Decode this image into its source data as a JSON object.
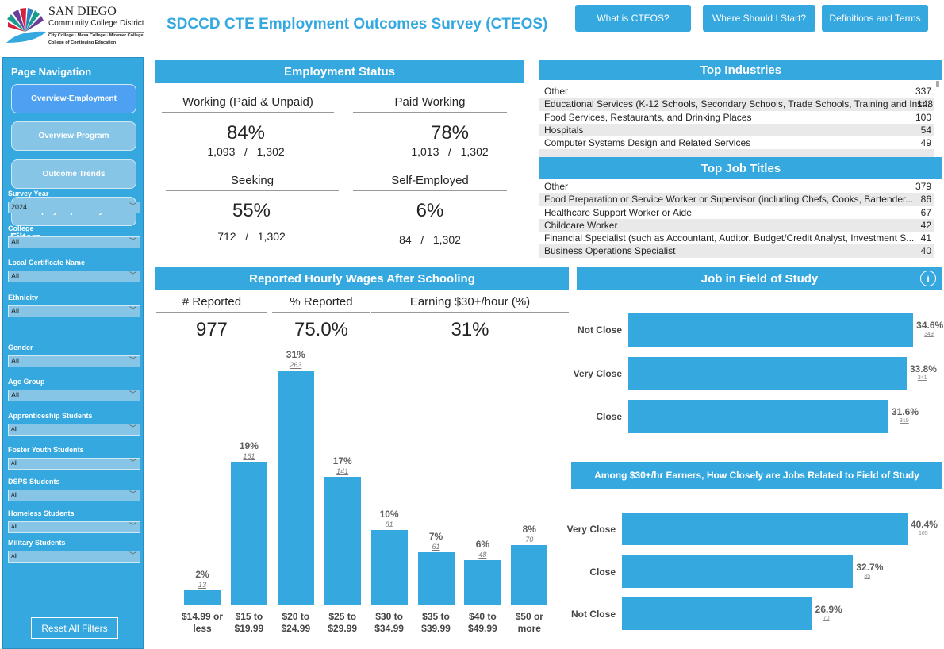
{
  "logo": {
    "line1": "SAN DIEGO",
    "line2": "Community College District",
    "line3": "City College · Mesa College · Miramar College",
    "line4": "College of Continuing Education"
  },
  "title": "SDCCD CTE Employment Outcomes Survey (CTEOS)",
  "top_buttons": [
    "What is CTEOS?",
    "Where Should I Start?",
    "Definitions and Terms"
  ],
  "sidebar": {
    "nav_title": "Page Navigation",
    "nav": [
      {
        "label": "Overview-Employment",
        "active": true
      },
      {
        "label": "Overview-Program"
      },
      {
        "label": "Outcome Trends"
      },
      {
        "label": "Equity Gaps Analysis"
      }
    ],
    "filters_title": "Filters",
    "filters": [
      {
        "label": "Survey Year",
        "value": "2024"
      },
      {
        "label": "College",
        "value": "All"
      },
      {
        "label": "Local Certificate Name",
        "value": "All"
      },
      {
        "label": "Ethnicity",
        "value": "All"
      },
      {
        "label": "Gender",
        "value": "All"
      },
      {
        "label": "Age Group",
        "value": "All"
      },
      {
        "label": "Apprenticeship Students",
        "value": "All"
      },
      {
        "label": "Foster Youth Students",
        "value": "All"
      },
      {
        "label": "DSPS Students",
        "value": "All"
      },
      {
        "label": "Homeless Students",
        "value": "All"
      },
      {
        "label": "Military Students",
        "value": "All"
      }
    ],
    "reset": "Reset All Filters"
  },
  "employment": {
    "title": "Employment Status",
    "kpis": [
      {
        "label": "Working (Paid & Unpaid)",
        "pct": "84%",
        "num": "1,093",
        "den": "1,302"
      },
      {
        "label": "Paid Working",
        "pct": "78%",
        "num": "1,013",
        "den": "1,302"
      },
      {
        "label": "Seeking",
        "pct": "55%",
        "num": "712",
        "den": "1,302"
      },
      {
        "label": "Self-Employed",
        "pct": "6%",
        "num": "84",
        "den": "1,302"
      }
    ]
  },
  "industries": {
    "title": "Top Industries",
    "rows": [
      [
        "Other",
        "337"
      ],
      [
        "Educational Services (K-12 Schools, Secondary Schools, Trade Schools, Training and Inst...",
        "148"
      ],
      [
        "Food Services, Restaurants, and Drinking Places",
        "100"
      ],
      [
        "Hospitals",
        "54"
      ],
      [
        "Computer Systems Design and Related Services",
        "49"
      ]
    ]
  },
  "jobs": {
    "title": "Top Job Titles",
    "rows": [
      [
        "Other",
        "379"
      ],
      [
        "Food Preparation or Service Worker or Supervisor (including Chefs, Cooks, Bartender...",
        "86"
      ],
      [
        "Healthcare Support Worker or Aide",
        "67"
      ],
      [
        "Childcare Worker",
        "42"
      ],
      [
        "Financial Specialist (such as Accountant, Auditor, Budget/Credit Analyst, Investment S...",
        "41"
      ],
      [
        "Business Operations Specialist",
        "40"
      ]
    ]
  },
  "wages": {
    "title": "Reported Hourly Wages After Schooling",
    "kpis": [
      {
        "label": "# Reported",
        "value": "977"
      },
      {
        "label": "% Reported",
        "value": "75.0%"
      },
      {
        "label": "Earning $30+/hour (%)",
        "value": "31%"
      }
    ]
  },
  "field": {
    "title": "Job in Field of Study",
    "info_icon": "info-icon"
  },
  "field30": {
    "title": "Among $30+/hr Earners, How Closely are Jobs Related to Field of Study"
  },
  "colors": {
    "accent": "#35a8df",
    "nav_active": "#4da0f2"
  },
  "chart_data": [
    {
      "type": "bar",
      "categories": [
        "$14.99 or less",
        "$15 to $19.99",
        "$20 to $24.99",
        "$25 to $29.99",
        "$30 to $34.99",
        "$35 to $39.99",
        "$40 to $49.99",
        "$50 or more"
      ],
      "values": [
        2,
        19,
        31,
        17,
        10,
        7,
        6,
        8
      ],
      "labels": [
        "2%",
        "19%",
        "31%",
        "17%",
        "10%",
        "7%",
        "6%",
        "8%"
      ],
      "counts": [
        "13",
        "161",
        "263",
        "141",
        "81",
        "61",
        "48",
        "70"
      ],
      "unit": "%"
    },
    {
      "type": "bar",
      "orientation": "horizontal",
      "categories": [
        "Not Close",
        "Very Close",
        "Close"
      ],
      "values": [
        34.6,
        33.8,
        31.6
      ],
      "labels": [
        "34.6%",
        "33.8%",
        "31.6%"
      ],
      "counts": [
        "349",
        "341",
        "319"
      ]
    },
    {
      "type": "bar",
      "orientation": "horizontal",
      "categories": [
        "Very Close",
        "Close",
        "Not Close"
      ],
      "values": [
        40.4,
        32.7,
        26.9
      ],
      "labels": [
        "40.4%",
        "32.7%",
        "26.9%"
      ],
      "counts": [
        "105",
        "85",
        "70"
      ]
    }
  ]
}
